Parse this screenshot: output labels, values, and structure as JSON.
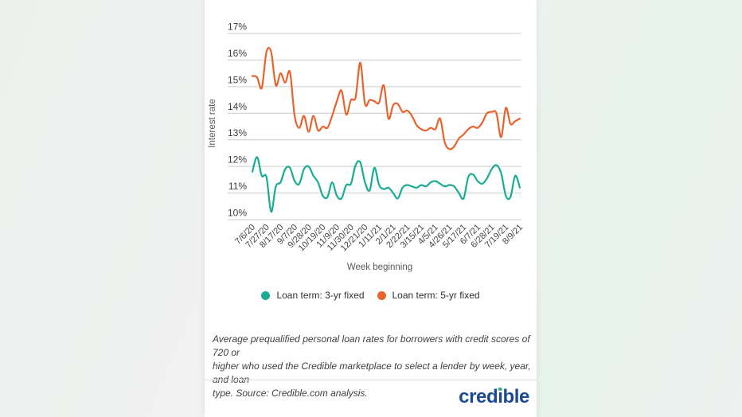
{
  "chart_data": {
    "type": "line",
    "xlabel": "Week beginning",
    "ylabel": "Interest rate",
    "ylim": [
      10,
      17
    ],
    "grid": "horizontal",
    "legend_position": "bottom",
    "y_ticks": [
      "17%",
      "16%",
      "15%",
      "14%",
      "13%",
      "12%",
      "11%",
      "10%"
    ],
    "x_tick_labels": [
      "7/6/20",
      "7/27/20",
      "8/17/20",
      "9/7/20",
      "9/28/20",
      "10/19/20",
      "11/9/20",
      "11/30/20",
      "12/21/20",
      "1/11/21",
      "2/1/21",
      "2/22/21",
      "3/15/21",
      "4/5/21",
      "4/26/21",
      "5/17/21",
      "6/7/21",
      "6/28/21",
      "7/19/21",
      "8/9/21"
    ],
    "x_tick_every": 3,
    "points_per_series": 58,
    "series": [
      {
        "name": "Loan term: 3-yr fixed",
        "color": "#18ac93",
        "values": [
          11.8,
          12.35,
          11.65,
          11.6,
          10.3,
          11.25,
          11.4,
          11.9,
          11.95,
          11.45,
          11.35,
          11.9,
          12.0,
          11.65,
          11.4,
          10.9,
          10.85,
          11.4,
          10.9,
          10.8,
          11.3,
          11.35,
          12.05,
          12.15,
          11.4,
          11.1,
          11.95,
          11.3,
          11.15,
          11.2,
          11.0,
          10.8,
          11.2,
          11.3,
          11.25,
          11.2,
          11.3,
          11.25,
          11.4,
          11.45,
          11.35,
          11.25,
          11.3,
          11.25,
          11.0,
          10.8,
          11.6,
          11.7,
          11.45,
          11.35,
          11.55,
          11.9,
          12.05,
          11.75,
          10.9,
          10.85,
          11.65,
          11.2
        ]
      },
      {
        "name": "Loan term: 5-yr fixed",
        "color": "#e8622c",
        "values": [
          15.4,
          15.35,
          14.95,
          16.3,
          16.3,
          15.05,
          15.5,
          15.15,
          15.55,
          13.9,
          13.45,
          13.9,
          13.3,
          13.9,
          13.35,
          13.5,
          13.45,
          13.9,
          14.45,
          14.85,
          13.95,
          14.5,
          14.6,
          15.9,
          14.35,
          14.5,
          14.45,
          14.4,
          15.05,
          13.8,
          14.3,
          14.35,
          14.05,
          14.1,
          13.9,
          13.55,
          13.4,
          13.35,
          13.45,
          13.4,
          13.8,
          12.9,
          12.65,
          12.75,
          13.05,
          13.2,
          13.4,
          13.5,
          13.45,
          13.65,
          14.0,
          14.05,
          14.0,
          13.1,
          14.2,
          13.6,
          13.7,
          13.8
        ]
      }
    ],
    "style": {
      "grid_color": "#cccccc",
      "tick_label_color": "#3d3d3d",
      "axis_title_color": "#5a5a5a"
    }
  },
  "caption": {
    "lines": [
      "Average prequalified personal loan rates for borrowers with credit scores of 720 or",
      "higher who used the Credible marketplace to select a lender by week, year, and loan",
      "type. Source: Credible.com analysis."
    ]
  },
  "footer": {
    "brand": {
      "text": "credible",
      "pre": "cred",
      "i_dotless": "ı",
      "post": "ble"
    }
  }
}
